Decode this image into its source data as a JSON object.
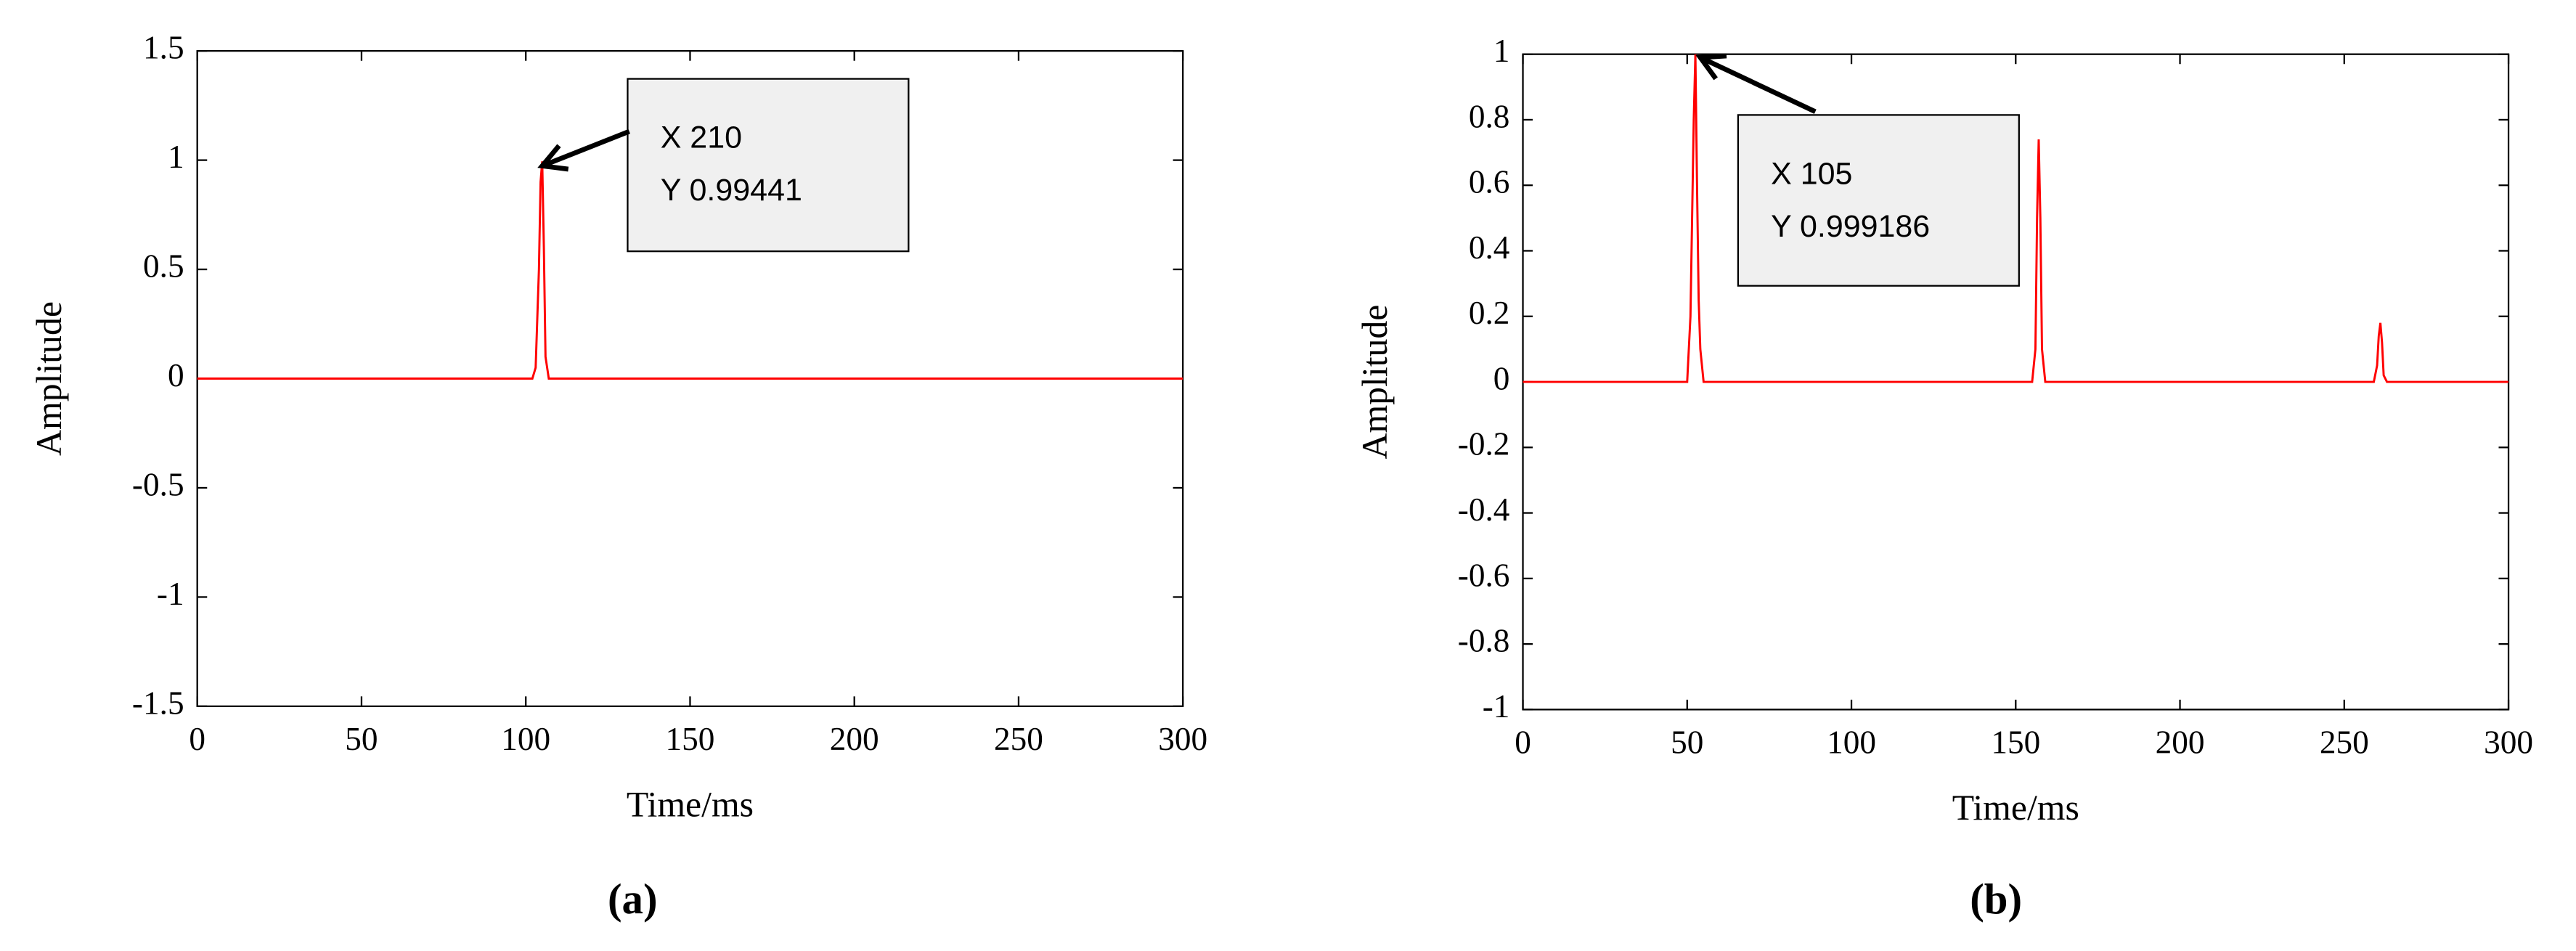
{
  "chart_data": [
    {
      "type": "line",
      "color": "#ff0000",
      "x_label": "Time/ms",
      "y_label": "Amplitude",
      "panel_label": "(a)",
      "annotation": [
        "X 210",
        "Y 0.99441"
      ],
      "x": [
        0,
        102,
        103,
        104,
        104.5,
        105,
        105.5,
        106,
        107,
        300
      ],
      "values": [
        0,
        0,
        0.05,
        0.5,
        0.9,
        0.99441,
        0.6,
        0.1,
        0,
        0
      ],
      "xlim": [
        0,
        300
      ],
      "xticks": [
        0,
        50,
        100,
        150,
        200,
        250,
        300
      ],
      "ylim": [
        -1.5,
        1.5
      ],
      "yticks": [
        -1.5,
        -1,
        -0.5,
        0,
        0.5,
        1,
        1.5
      ]
    },
    {
      "type": "line",
      "color": "#ff0000",
      "x_label": "Time/ms",
      "y_label": "Amplitude",
      "panel_label": "(b)",
      "annotation": [
        "X 105",
        "Y 0.999186"
      ],
      "x": [
        0,
        50,
        51,
        52,
        52.5,
        53,
        53.5,
        54,
        55,
        155,
        156,
        156.5,
        157,
        157.5,
        158,
        159,
        259,
        260,
        260.5,
        261,
        261.5,
        262,
        263,
        300
      ],
      "values": [
        0,
        0,
        0.2,
        0.8,
        0.999186,
        0.6,
        0.25,
        0.1,
        0,
        0,
        0.1,
        0.5,
        0.74,
        0.5,
        0.1,
        0,
        0,
        0.05,
        0.14,
        0.18,
        0.12,
        0.02,
        0,
        0
      ],
      "xlim": [
        0,
        300
      ],
      "xticks": [
        0,
        50,
        100,
        150,
        200,
        250,
        300
      ],
      "ylim": [
        -1,
        1
      ],
      "yticks": [
        -1,
        -0.8,
        -0.6,
        -0.4,
        -0.2,
        0,
        0.2,
        0.4,
        0.6,
        0.8,
        1
      ]
    }
  ]
}
